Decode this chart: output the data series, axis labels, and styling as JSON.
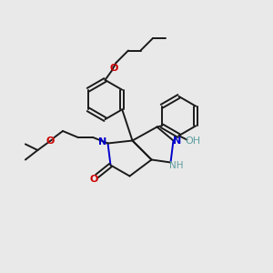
{
  "bg": "#e9e9e9",
  "black": "#1a1a1a",
  "blue": "#0000cc",
  "red": "#cc0000",
  "teal": "#5f9ea0",
  "lw": 1.4,
  "xlim": [
    0,
    10
  ],
  "ylim": [
    0,
    10
  ],
  "figsize": [
    3.0,
    3.0
  ],
  "dpi": 100
}
